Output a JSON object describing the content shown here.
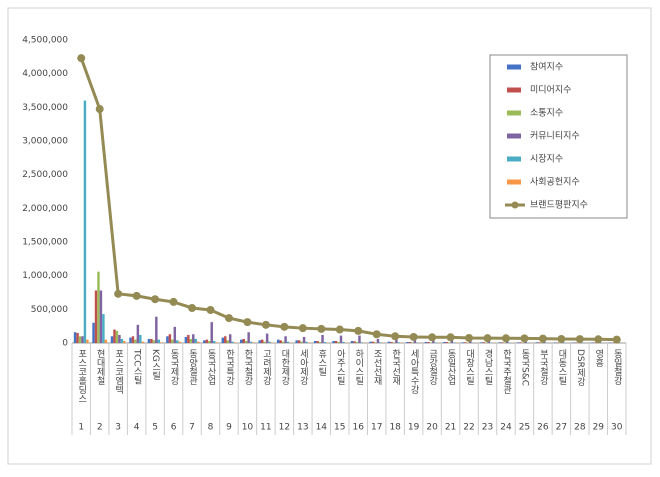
{
  "chart_data": {
    "type": "bar",
    "categories": [
      "포스코홀딩스",
      "현대제철",
      "포스코엠텍",
      "TCC스틸",
      "KG스틸",
      "동국제강",
      "동양철관",
      "동국산업",
      "한국특강",
      "한국철강",
      "고려제강",
      "대한제강",
      "세아제강",
      "휴스틸",
      "아주스틸",
      "하이스틸",
      "조선선재",
      "한국선재",
      "세아특수강",
      "금강철강",
      "동일산업",
      "대창스틸",
      "경남스틸",
      "한국주철관",
      "동국S&C",
      "부국철강",
      "대동스틸",
      "DSR제강",
      "영흥",
      "동일철강"
    ],
    "rank_labels": [
      "1",
      "2",
      "3",
      "4",
      "5",
      "6",
      "7",
      "8",
      "9",
      "10",
      "11",
      "12",
      "13",
      "14",
      "15",
      "16",
      "17",
      "18",
      "19",
      "20",
      "21",
      "22",
      "23",
      "24",
      "25",
      "26",
      "27",
      "28",
      "29",
      "30"
    ],
    "series": [
      {
        "name": "참여지수",
        "color": "#4472c4",
        "values": [
          160000,
          300000,
          100000,
          80000,
          60000,
          100000,
          90000,
          40000,
          80000,
          50000,
          40000,
          50000,
          40000,
          30000,
          30000,
          30000,
          20000,
          20000,
          15000,
          15000,
          15000,
          10000,
          10000,
          10000,
          10000,
          10000,
          8000,
          8000,
          8000,
          6000
        ]
      },
      {
        "name": "미디어지수",
        "color": "#c0504d",
        "values": [
          150000,
          780000,
          200000,
          100000,
          60000,
          130000,
          120000,
          50000,
          100000,
          60000,
          50000,
          40000,
          40000,
          30000,
          30000,
          25000,
          20000,
          15000,
          15000,
          15000,
          15000,
          12000,
          12000,
          10000,
          10000,
          10000,
          8000,
          8000,
          8000,
          6000
        ]
      },
      {
        "name": "소통지수",
        "color": "#9bbb59",
        "values": [
          100000,
          1060000,
          180000,
          50000,
          40000,
          50000,
          60000,
          30000,
          40000,
          30000,
          20000,
          20000,
          20000,
          15000,
          15000,
          15000,
          10000,
          10000,
          10000,
          8000,
          8000,
          8000,
          8000,
          6000,
          6000,
          6000,
          5000,
          5000,
          5000,
          4000
        ]
      },
      {
        "name": "커뮤니티지수",
        "color": "#8064a2",
        "values": [
          100000,
          780000,
          120000,
          270000,
          390000,
          240000,
          130000,
          310000,
          130000,
          160000,
          140000,
          100000,
          90000,
          120000,
          110000,
          110000,
          60000,
          50000,
          50000,
          45000,
          45000,
          40000,
          35000,
          35000,
          35000,
          30000,
          30000,
          28000,
          28000,
          25000
        ]
      },
      {
        "name": "시장지수",
        "color": "#4bacc6",
        "values": [
          3600000,
          430000,
          60000,
          120000,
          50000,
          40000,
          60000,
          30000,
          20000,
          20000,
          20000,
          20000,
          20000,
          15000,
          15000,
          10000,
          10000,
          10000,
          8000,
          8000,
          8000,
          6000,
          6000,
          6000,
          6000,
          5000,
          5000,
          5000,
          4000,
          4000
        ]
      },
      {
        "name": "사회공헌지수",
        "color": "#f79646",
        "values": [
          50000,
          50000,
          30000,
          20000,
          10000,
          20000,
          20000,
          10000,
          10000,
          10000,
          8000,
          8000,
          8000,
          6000,
          6000,
          6000,
          5000,
          5000,
          5000,
          5000,
          5000,
          4000,
          4000,
          4000,
          4000,
          4000,
          3000,
          3000,
          3000,
          3000
        ]
      },
      {
        "name": "브랜드평판지수",
        "color": "#948a54",
        "line": true,
        "values": [
          4230000,
          3475000,
          730000,
          700000,
          650000,
          610000,
          520000,
          490000,
          370000,
          310000,
          270000,
          240000,
          220000,
          210000,
          200000,
          180000,
          130000,
          100000,
          90000,
          85000,
          85000,
          75000,
          72000,
          70000,
          68000,
          65000,
          60000,
          58000,
          55000,
          50000
        ]
      }
    ],
    "ylim": [
      0,
      4500000
    ],
    "yticks": [
      0,
      {
        "value": 500000,
        "label": "500,000"
      },
      {
        "value": 1000000,
        "label": "1,000,000"
      },
      {
        "value": 1500000,
        "label": "1,500,000"
      },
      {
        "value": 2000000,
        "label": "2,000,000"
      },
      {
        "value": 2500000,
        "label": "2,500,000"
      },
      {
        "value": 3000000,
        "label": "3,000,000"
      },
      {
        "value": 3500000,
        "label": "3,500,000"
      },
      {
        "value": 4000000,
        "label": "4,000,000"
      },
      {
        "value": 4500000,
        "label": "4,500,000"
      }
    ],
    "grid": false,
    "legend": "top-right"
  }
}
